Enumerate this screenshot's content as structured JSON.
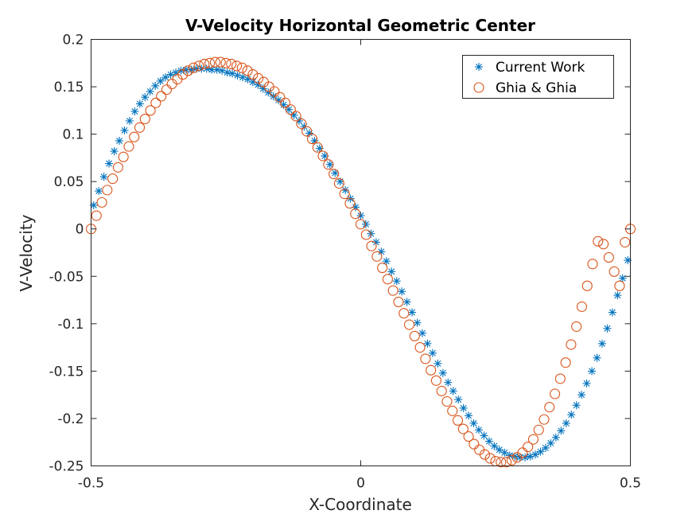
{
  "chart_data": {
    "type": "scatter",
    "title": "V-Velocity Horizontal Geometric Center",
    "xlabel": "X-Coordinate",
    "ylabel": "V-Velocity",
    "xlim": [
      -0.5,
      0.5
    ],
    "ylim": [
      -0.25,
      0.2
    ],
    "xticks": [
      -0.5,
      0,
      0.5
    ],
    "xtick_labels": [
      "-0.5",
      "0",
      "0.5"
    ],
    "yticks": [
      0.2,
      0.15,
      0.1,
      0.05,
      0,
      -0.05,
      -0.1,
      -0.15,
      -0.2,
      -0.25
    ],
    "ytick_labels": [
      "0.2",
      "0.15",
      "0.1",
      "0.05",
      "0",
      "-0.05",
      "-0.1",
      "-0.15",
      "-0.2",
      "-0.25"
    ],
    "grid": false,
    "legend_position": "top-right",
    "series": [
      {
        "name": "Current Work",
        "marker": "asterisk",
        "color": "#0072BD",
        "x": [
          -0.4952,
          -0.4857,
          -0.4762,
          -0.4667,
          -0.4571,
          -0.4476,
          -0.4381,
          -0.4286,
          -0.419,
          -0.4095,
          -0.4,
          -0.3905,
          -0.381,
          -0.3714,
          -0.3619,
          -0.3524,
          -0.3429,
          -0.3333,
          -0.3238,
          -0.3143,
          -0.3048,
          -0.2952,
          -0.2857,
          -0.2762,
          -0.2667,
          -0.2571,
          -0.2476,
          -0.2381,
          -0.2286,
          -0.219,
          -0.2095,
          -0.2,
          -0.1905,
          -0.181,
          -0.1714,
          -0.1619,
          -0.1524,
          -0.1429,
          -0.1333,
          -0.1238,
          -0.1143,
          -0.1048,
          -0.0952,
          -0.0857,
          -0.0762,
          -0.0667,
          -0.0571,
          -0.0476,
          -0.0381,
          -0.0286,
          -0.019,
          -0.0095,
          0.0,
          0.0095,
          0.019,
          0.0286,
          0.0381,
          0.0476,
          0.0571,
          0.0667,
          0.0762,
          0.0857,
          0.0952,
          0.1048,
          0.1143,
          0.1238,
          0.1333,
          0.1429,
          0.1524,
          0.1619,
          0.1714,
          0.181,
          0.1905,
          0.2,
          0.2095,
          0.219,
          0.2286,
          0.2381,
          0.2476,
          0.2571,
          0.2667,
          0.2762,
          0.2857,
          0.2952,
          0.3048,
          0.3143,
          0.3238,
          0.3333,
          0.3429,
          0.3524,
          0.3619,
          0.3714,
          0.381,
          0.3905,
          0.4,
          0.4095,
          0.419,
          0.4286,
          0.4381,
          0.4476,
          0.4571,
          0.4667,
          0.4762,
          0.4857,
          0.4952
        ],
        "y": [
          0.025,
          0.04,
          0.055,
          0.069,
          0.082,
          0.093,
          0.104,
          0.114,
          0.124,
          0.132,
          0.139,
          0.145,
          0.151,
          0.156,
          0.16,
          0.163,
          0.165,
          0.167,
          0.168,
          0.168,
          0.169,
          0.169,
          0.169,
          0.168,
          0.168,
          0.167,
          0.165,
          0.164,
          0.162,
          0.16,
          0.158,
          0.155,
          0.152,
          0.148,
          0.144,
          0.14,
          0.136,
          0.131,
          0.126,
          0.12,
          0.114,
          0.108,
          0.101,
          0.093,
          0.085,
          0.077,
          0.068,
          0.059,
          0.05,
          0.041,
          0.032,
          0.023,
          0.014,
          0.005,
          -0.005,
          -0.014,
          -0.024,
          -0.034,
          -0.045,
          -0.055,
          -0.066,
          -0.077,
          -0.088,
          -0.099,
          -0.11,
          -0.121,
          -0.131,
          -0.142,
          -0.152,
          -0.162,
          -0.171,
          -0.18,
          -0.189,
          -0.197,
          -0.205,
          -0.212,
          -0.218,
          -0.224,
          -0.229,
          -0.233,
          -0.236,
          -0.239,
          -0.24,
          -0.241,
          -0.241,
          -0.24,
          -0.238,
          -0.235,
          -0.231,
          -0.226,
          -0.22,
          -0.213,
          -0.205,
          -0.196,
          -0.186,
          -0.175,
          -0.163,
          -0.15,
          -0.136,
          -0.121,
          -0.105,
          -0.088,
          -0.07,
          -0.052,
          -0.033
        ]
      },
      {
        "name": "Ghia & Ghia",
        "marker": "circle",
        "color": "#D95319",
        "x": [
          -0.5,
          -0.49,
          -0.48,
          -0.47,
          -0.46,
          -0.45,
          -0.44,
          -0.43,
          -0.42,
          -0.41,
          -0.4,
          -0.39,
          -0.38,
          -0.37,
          -0.36,
          -0.35,
          -0.34,
          -0.33,
          -0.32,
          -0.31,
          -0.3,
          -0.29,
          -0.28,
          -0.27,
          -0.26,
          -0.25,
          -0.24,
          -0.23,
          -0.22,
          -0.21,
          -0.2,
          -0.19,
          -0.18,
          -0.17,
          -0.16,
          -0.15,
          -0.14,
          -0.13,
          -0.12,
          -0.11,
          -0.1,
          -0.09,
          -0.08,
          -0.07,
          -0.06,
          -0.05,
          -0.04,
          -0.03,
          -0.02,
          -0.01,
          0.0,
          0.01,
          0.02,
          0.03,
          0.04,
          0.05,
          0.06,
          0.07,
          0.08,
          0.09,
          0.1,
          0.11,
          0.12,
          0.13,
          0.14,
          0.15,
          0.16,
          0.17,
          0.18,
          0.19,
          0.2,
          0.21,
          0.22,
          0.23,
          0.24,
          0.25,
          0.26,
          0.27,
          0.28,
          0.29,
          0.3,
          0.31,
          0.32,
          0.33,
          0.34,
          0.35,
          0.36,
          0.37,
          0.38,
          0.39,
          0.4,
          0.41,
          0.42,
          0.43,
          0.44,
          0.45,
          0.46,
          0.47,
          0.48,
          0.49,
          0.5
        ],
        "y": [
          0.0,
          0.014,
          0.028,
          0.041,
          0.053,
          0.065,
          0.076,
          0.087,
          0.097,
          0.107,
          0.116,
          0.125,
          0.133,
          0.14,
          0.147,
          0.153,
          0.158,
          0.163,
          0.167,
          0.17,
          0.172,
          0.174,
          0.175,
          0.176,
          0.176,
          0.175,
          0.174,
          0.172,
          0.17,
          0.167,
          0.163,
          0.159,
          0.155,
          0.15,
          0.145,
          0.139,
          0.133,
          0.126,
          0.119,
          0.111,
          0.103,
          0.095,
          0.086,
          0.077,
          0.068,
          0.058,
          0.048,
          0.037,
          0.027,
          0.016,
          0.005,
          -0.006,
          -0.018,
          -0.029,
          -0.041,
          -0.053,
          -0.065,
          -0.077,
          -0.089,
          -0.101,
          -0.113,
          -0.125,
          -0.137,
          -0.149,
          -0.16,
          -0.171,
          -0.182,
          -0.192,
          -0.202,
          -0.211,
          -0.219,
          -0.227,
          -0.233,
          -0.238,
          -0.242,
          -0.245,
          -0.246,
          -0.246,
          -0.244,
          -0.241,
          -0.236,
          -0.23,
          -0.222,
          -0.212,
          -0.201,
          -0.188,
          -0.174,
          -0.158,
          -0.141,
          -0.122,
          -0.103,
          -0.082,
          -0.06,
          -0.037,
          -0.013,
          -0.016,
          -0.03,
          -0.045,
          -0.06,
          -0.014,
          0.0
        ]
      }
    ]
  }
}
